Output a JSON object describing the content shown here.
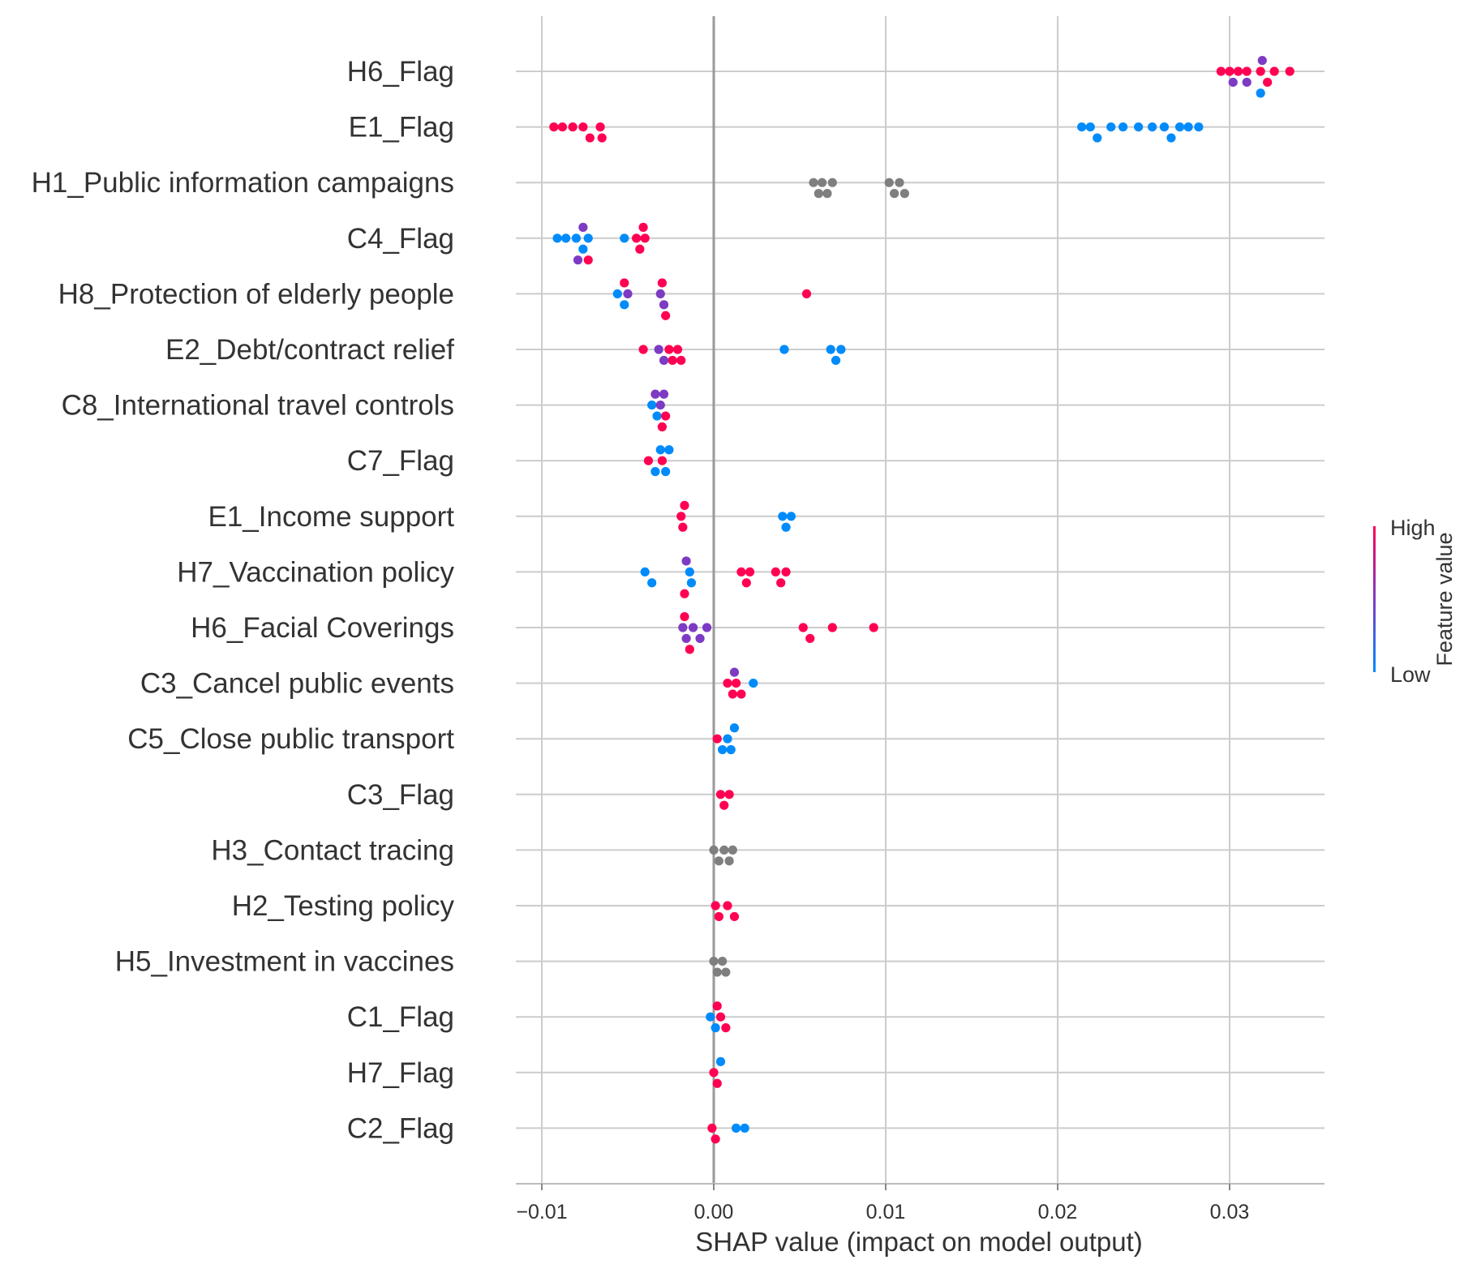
{
  "chart_data": {
    "type": "scatter",
    "subtype": "shap-beeswarm",
    "xlabel": "SHAP value (impact on model output)",
    "xlim": [
      -0.0115,
      0.0355
    ],
    "x_ticks": [
      -0.01,
      0.0,
      0.01,
      0.02,
      0.03
    ],
    "x_tick_labels": [
      "−0.01",
      "0.00",
      "0.01",
      "0.02",
      "0.03"
    ],
    "zero_line": 0.0,
    "grid": "vertical and horizontal",
    "colors": {
      "high": "#ff0052",
      "low": "#008bfb",
      "mid": "#7d3bc4",
      "na": "#7f7f7f",
      "grid": "#cccccc"
    },
    "colorbar": {
      "title": "Feature value",
      "high_label": "High",
      "low_label": "Low",
      "placement": "right"
    },
    "features": [
      {
        "name": "H6_Flag",
        "groups": [
          {
            "x": [
              0.0295,
              0.03,
              0.0305,
              0.031,
              0.0318,
              0.0322,
              0.0326,
              0.0335
            ],
            "c": "high"
          },
          {
            "x": [
              0.0302,
              0.031,
              0.0319
            ],
            "c": "mid"
          },
          {
            "x": [
              0.0318
            ],
            "c": "low"
          }
        ]
      },
      {
        "name": "E1_Flag",
        "groups": [
          {
            "x": [
              -0.0093,
              -0.0088,
              -0.0082,
              -0.0076,
              -0.0072,
              -0.0066,
              -0.0065
            ],
            "c": "high"
          },
          {
            "x": [
              0.0214,
              0.0219,
              0.0223,
              0.0231,
              0.0238,
              0.0247,
              0.0255,
              0.0262,
              0.0266,
              0.0271,
              0.0276,
              0.0282
            ],
            "c": "low"
          }
        ]
      },
      {
        "name": "H1_Public information campaigns",
        "groups": [
          {
            "x": [
              0.0058,
              0.0061,
              0.0063,
              0.0066,
              0.0069,
              0.0102,
              0.0105,
              0.0108,
              0.0111
            ],
            "c": "na"
          }
        ]
      },
      {
        "name": "C4_Flag",
        "groups": [
          {
            "x": [
              -0.0091,
              -0.0086,
              -0.008,
              -0.0076,
              -0.0073,
              -0.0052
            ],
            "c": "low"
          },
          {
            "x": [
              -0.0076,
              -0.0079
            ],
            "c": "mid"
          },
          {
            "x": [
              -0.0073,
              -0.0045,
              -0.0043,
              -0.0041,
              -0.004
            ],
            "c": "high"
          }
        ]
      },
      {
        "name": "H8_Protection of elderly people",
        "groups": [
          {
            "x": [
              -0.0056,
              -0.0052
            ],
            "c": "low"
          },
          {
            "x": [
              -0.005,
              -0.0031,
              -0.0029
            ],
            "c": "mid"
          },
          {
            "x": [
              -0.0052,
              -0.003,
              -0.0028,
              0.0054
            ],
            "c": "high"
          }
        ]
      },
      {
        "name": "E2_Debt/contract relief",
        "groups": [
          {
            "x": [
              -0.0041,
              -0.0026,
              -0.0024,
              -0.0021,
              -0.0019
            ],
            "c": "high"
          },
          {
            "x": [
              -0.0032,
              -0.0029
            ],
            "c": "mid"
          },
          {
            "x": [
              0.0041,
              0.0068,
              0.0071,
              0.0074
            ],
            "c": "low"
          }
        ]
      },
      {
        "name": "C8_International travel controls",
        "groups": [
          {
            "x": [
              -0.0036,
              -0.0033
            ],
            "c": "low"
          },
          {
            "x": [
              -0.0034,
              -0.0031,
              -0.0029
            ],
            "c": "mid"
          },
          {
            "x": [
              -0.003,
              -0.0028
            ],
            "c": "high"
          }
        ]
      },
      {
        "name": "C7_Flag",
        "groups": [
          {
            "x": [
              -0.0038,
              -0.003
            ],
            "c": "high"
          },
          {
            "x": [
              -0.0034,
              -0.0031,
              -0.0028,
              -0.0026
            ],
            "c": "low"
          }
        ]
      },
      {
        "name": "E1_Income support",
        "groups": [
          {
            "x": [
              -0.0019,
              -0.0018,
              -0.0017
            ],
            "c": "high"
          },
          {
            "x": [
              0.004,
              0.0042,
              0.0045
            ],
            "c": "low"
          }
        ]
      },
      {
        "name": "H7_Vaccination policy",
        "groups": [
          {
            "x": [
              -0.004,
              -0.0036,
              -0.0014,
              -0.0013
            ],
            "c": "low"
          },
          {
            "x": [
              -0.0016
            ],
            "c": "mid"
          },
          {
            "x": [
              -0.0017,
              0.0016,
              0.0019,
              0.0021,
              0.0036,
              0.0039,
              0.0042
            ],
            "c": "high"
          }
        ]
      },
      {
        "name": "H6_Facial Coverings",
        "groups": [
          {
            "x": [
              -0.0018,
              -0.0016,
              -0.0012,
              -0.0008,
              -0.0004
            ],
            "c": "mid"
          },
          {
            "x": [
              -0.0017,
              -0.0014,
              0.0052,
              0.0056,
              0.0069,
              0.0093
            ],
            "c": "high"
          }
        ]
      },
      {
        "name": "C3_Cancel public events",
        "groups": [
          {
            "x": [
              0.0008,
              0.0011,
              0.0013,
              0.0016
            ],
            "c": "high"
          },
          {
            "x": [
              0.0012
            ],
            "c": "mid"
          },
          {
            "x": [
              0.0023
            ],
            "c": "low"
          }
        ]
      },
      {
        "name": "C5_Close public transport",
        "groups": [
          {
            "x": [
              0.0002
            ],
            "c": "high"
          },
          {
            "x": [
              0.0005,
              0.0008,
              0.001,
              0.0012
            ],
            "c": "low"
          }
        ]
      },
      {
        "name": "C3_Flag",
        "groups": [
          {
            "x": [
              0.0004,
              0.0006,
              0.0009
            ],
            "c": "high"
          }
        ]
      },
      {
        "name": "H3_Contact tracing",
        "groups": [
          {
            "x": [
              0.0,
              0.0003,
              0.0006,
              0.0009,
              0.0011
            ],
            "c": "na"
          }
        ]
      },
      {
        "name": "H2_Testing policy",
        "groups": [
          {
            "x": [
              0.0001,
              0.0003,
              0.0008,
              0.0012
            ],
            "c": "high"
          }
        ]
      },
      {
        "name": "H5_Investment in vaccines",
        "groups": [
          {
            "x": [
              0.0,
              0.0002,
              0.0005,
              0.0007
            ],
            "c": "na"
          }
        ]
      },
      {
        "name": "C1_Flag",
        "groups": [
          {
            "x": [
              -0.0002,
              0.0001
            ],
            "c": "low"
          },
          {
            "x": [
              0.0002,
              0.0004,
              0.0007
            ],
            "c": "high"
          }
        ]
      },
      {
        "name": "H7_Flag",
        "groups": [
          {
            "x": [
              0.0,
              0.0002
            ],
            "c": "high"
          },
          {
            "x": [
              0.0004
            ],
            "c": "low"
          }
        ]
      },
      {
        "name": "C2_Flag",
        "groups": [
          {
            "x": [
              -0.0001,
              0.0001
            ],
            "c": "high"
          },
          {
            "x": [
              0.0013,
              0.0018
            ],
            "c": "low"
          }
        ]
      }
    ]
  }
}
